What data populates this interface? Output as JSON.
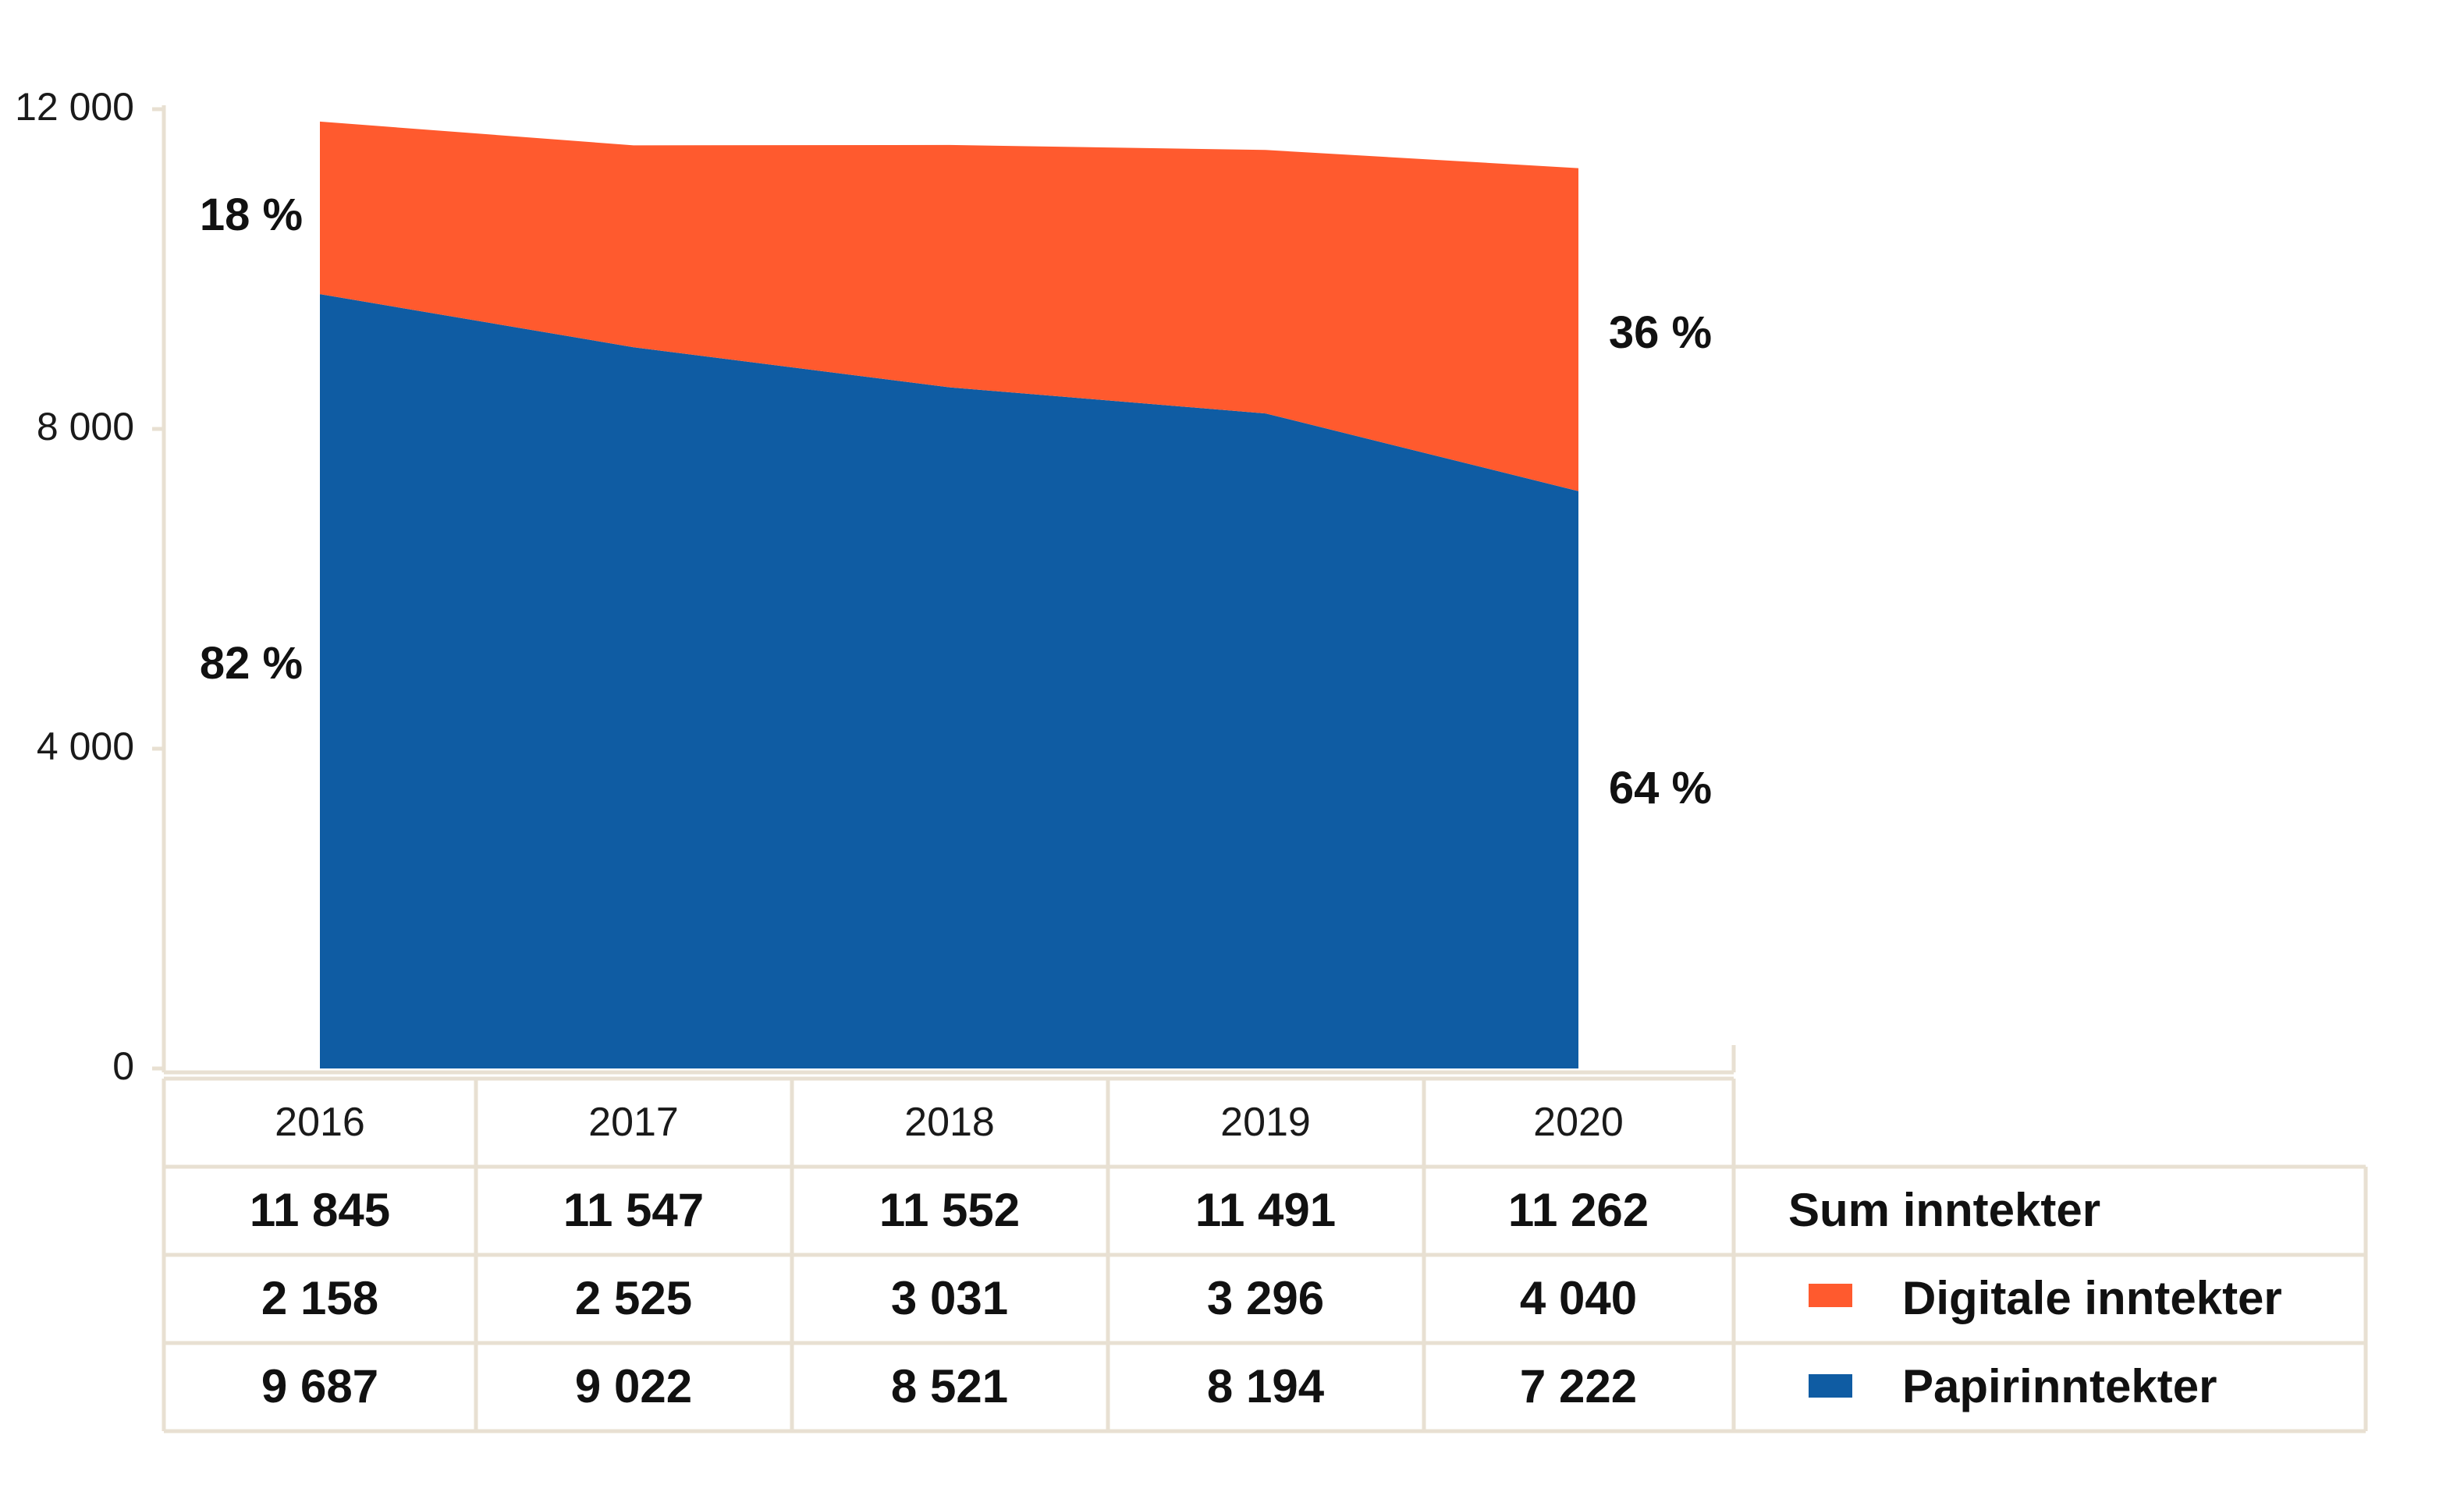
{
  "chart_data": {
    "type": "area",
    "stacked": true,
    "x": [
      "2016",
      "2017",
      "2018",
      "2019",
      "2020"
    ],
    "yticks": [
      "0",
      "4 000",
      "8 000",
      "12 000"
    ],
    "ytick_values": [
      0,
      4000,
      8000,
      12000
    ],
    "ylim": [
      0,
      12000
    ],
    "series": [
      {
        "name": "Papirinntekter",
        "color": "#0f5ca3",
        "values": [
          9687,
          9022,
          8521,
          8194,
          7222
        ]
      },
      {
        "name": "Digitale inntekter",
        "color": "#ff5a2e",
        "values": [
          2158,
          2525,
          3031,
          3296,
          4040
        ]
      }
    ],
    "table": {
      "rows": [
        {
          "label": "Sum inntekter",
          "values": [
            "11 845",
            "11 547",
            "11 552",
            "11 491",
            "11 262"
          ]
        },
        {
          "label": "Digitale inntekter",
          "values": [
            "2 158",
            "2 525",
            "3 031",
            "3 296",
            "4 040"
          ],
          "color": "#ff5a2e"
        },
        {
          "label": "Papirinntekter",
          "values": [
            "9 687",
            "9 022",
            "8 521",
            "8 194",
            "7 222"
          ],
          "color": "#0f5ca3"
        }
      ]
    },
    "annotations": {
      "digital_start": "18 %",
      "paper_start": "82 %",
      "digital_end": "36 %",
      "paper_end": "64 %"
    }
  }
}
